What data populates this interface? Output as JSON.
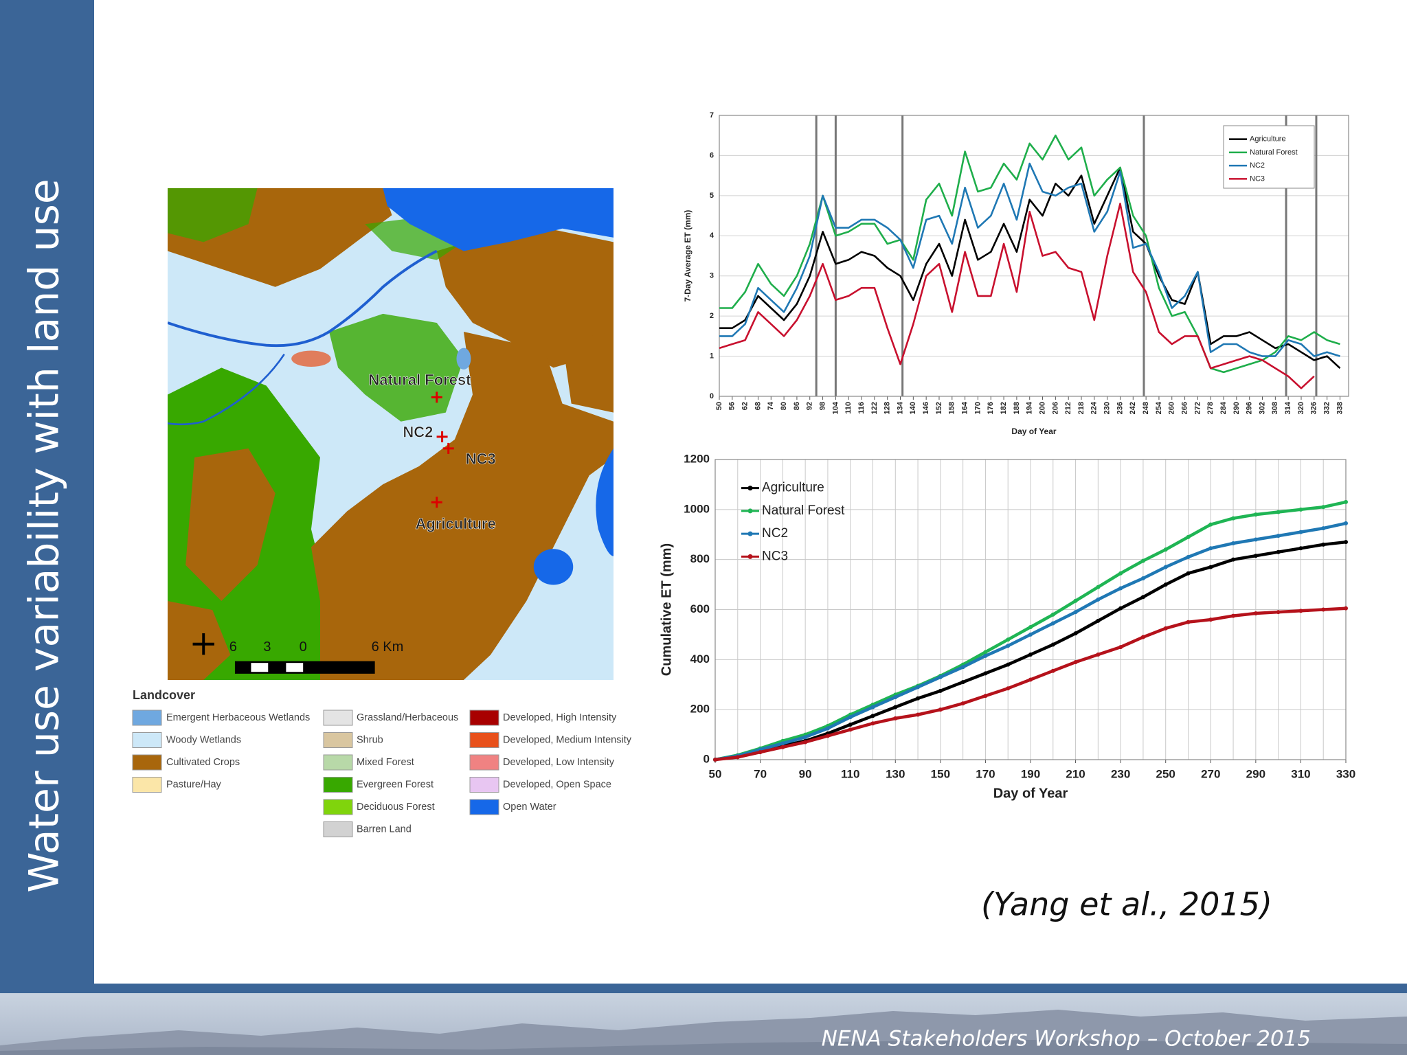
{
  "slide": {
    "title": "Water use variability with land use",
    "citation": "(Yang et al., 2015)",
    "footer": "NENA Stakeholders Workshop – October 2015"
  },
  "map": {
    "sites": [
      "Natural Forest",
      "NC2",
      "NC3",
      "Agriculture"
    ],
    "scale_labels": [
      "6",
      "3",
      "0",
      "6 Km"
    ],
    "legend_title": "Landcover",
    "legend": [
      [
        {
          "label": "Emergent Herbaceous Wetlands",
          "color": "#6fa8e0"
        },
        {
          "label": "Woody Wetlands",
          "color": "#cde8f8"
        },
        {
          "label": "Cultivated Crops",
          "color": "#a8660c"
        },
        {
          "label": "Pasture/Hay",
          "color": "#fbe6a8"
        }
      ],
      [
        {
          "label": "Grassland/Herbaceous",
          "color": "#e4e4e4"
        },
        {
          "label": "Shrub",
          "color": "#d9c6a0"
        },
        {
          "label": "Mixed Forest",
          "color": "#b8d9a8"
        },
        {
          "label": "Evergreen Forest",
          "color": "#38a800"
        },
        {
          "label": "Deciduous Forest",
          "color": "#80d40c"
        },
        {
          "label": "Barren Land",
          "color": "#d2d2d2"
        }
      ],
      [
        {
          "label": "Developed, High Intensity",
          "color": "#a80000"
        },
        {
          "label": "Developed, Medium Intensity",
          "color": "#e8501a"
        },
        {
          "label": "Developed, Low Intensity",
          "color": "#f08282"
        },
        {
          "label": "Developed, Open Space",
          "color": "#e8c6f2"
        },
        {
          "label": "Open Water",
          "color": "#1668e8"
        }
      ]
    ]
  },
  "chart_data": [
    {
      "type": "line",
      "ylabel": "7-Day Average ET (mm)",
      "xlabel": "Day of Year",
      "x": [
        50,
        56,
        62,
        68,
        74,
        80,
        86,
        92,
        98,
        104,
        110,
        116,
        122,
        128,
        134,
        140,
        146,
        152,
        158,
        164,
        170,
        176,
        182,
        188,
        194,
        200,
        206,
        212,
        218,
        224,
        230,
        236,
        242,
        248,
        254,
        260,
        266,
        272,
        278,
        284,
        290,
        296,
        302,
        308,
        314,
        320,
        326,
        332,
        338
      ],
      "xlim": [
        50,
        342
      ],
      "xticks": [
        50,
        56,
        62,
        68,
        74,
        80,
        86,
        92,
        98,
        104,
        110,
        116,
        122,
        128,
        134,
        140,
        146,
        152,
        158,
        164,
        170,
        176,
        182,
        188,
        194,
        200,
        206,
        212,
        218,
        224,
        230,
        236,
        242,
        248,
        254,
        260,
        266,
        272,
        278,
        284,
        290,
        296,
        302,
        308,
        314,
        320,
        326,
        332,
        338
      ],
      "ylim": [
        0,
        7
      ],
      "yticks": [
        0,
        1,
        2,
        3,
        4,
        5,
        6,
        7
      ],
      "grid": true,
      "vlines": [
        95,
        104,
        135,
        247,
        313,
        327
      ],
      "legend": "upper right",
      "markers": false,
      "series": [
        {
          "name": "Agriculture",
          "color": "#000000",
          "values": [
            1.7,
            1.7,
            1.9,
            2.5,
            2.2,
            1.9,
            2.3,
            3.0,
            4.1,
            3.3,
            3.4,
            3.6,
            3.5,
            3.2,
            3.0,
            2.4,
            3.3,
            3.8,
            3.0,
            4.4,
            3.4,
            3.6,
            4.3,
            3.6,
            4.9,
            4.5,
            5.3,
            5.0,
            5.5,
            4.3,
            5.0,
            5.7,
            4.1,
            3.8,
            3.0,
            2.4,
            2.3,
            3.1,
            1.3,
            1.5,
            1.5,
            1.6,
            1.4,
            1.2,
            1.3,
            1.1,
            0.9,
            1.0,
            0.7
          ]
        },
        {
          "name": "Natural Forest",
          "color": "#1fae4b",
          "values": [
            2.2,
            2.2,
            2.6,
            3.3,
            2.8,
            2.5,
            3.0,
            3.8,
            5.0,
            4.0,
            4.1,
            4.3,
            4.3,
            3.8,
            3.9,
            3.4,
            4.9,
            5.3,
            4.5,
            6.1,
            5.1,
            5.2,
            5.8,
            5.4,
            6.3,
            5.9,
            6.5,
            5.9,
            6.2,
            5.0,
            5.4,
            5.7,
            4.5,
            4.0,
            2.7,
            2.0,
            2.1,
            1.5,
            0.7,
            0.6,
            0.7,
            0.8,
            0.9,
            1.1,
            1.5,
            1.4,
            1.6,
            1.4,
            1.3
          ]
        },
        {
          "name": "NC2",
          "color": "#1f78b4",
          "values": [
            1.5,
            1.5,
            1.8,
            2.7,
            2.4,
            2.1,
            2.7,
            3.5,
            5.0,
            4.2,
            4.2,
            4.4,
            4.4,
            4.2,
            3.9,
            3.2,
            4.4,
            4.5,
            3.8,
            5.2,
            4.2,
            4.5,
            5.3,
            4.4,
            5.8,
            5.1,
            5.0,
            5.2,
            5.3,
            4.1,
            4.6,
            5.6,
            3.7,
            3.8,
            3.1,
            2.2,
            2.5,
            3.1,
            1.1,
            1.3,
            1.3,
            1.1,
            1.0,
            1.0,
            1.4,
            1.3,
            1.0,
            1.1,
            1.0
          ]
        },
        {
          "name": "NC3",
          "color": "#c8102e",
          "values": [
            1.2,
            1.3,
            1.4,
            2.1,
            1.8,
            1.5,
            1.9,
            2.5,
            3.3,
            2.4,
            2.5,
            2.7,
            2.7,
            1.7,
            0.8,
            1.8,
            3.0,
            3.3,
            2.1,
            3.6,
            2.5,
            2.5,
            3.8,
            2.6,
            4.6,
            3.5,
            3.6,
            3.2,
            3.1,
            1.9,
            3.5,
            4.8,
            3.1,
            2.6,
            1.6,
            1.3,
            1.5,
            1.5,
            0.7,
            0.8,
            0.9,
            1.0,
            0.9,
            0.7,
            0.5,
            0.2,
            0.5,
            null,
            null
          ]
        }
      ]
    },
    {
      "type": "line",
      "ylabel": "Cumulative ET (mm)",
      "xlabel": "Day of Year",
      "x": [
        50,
        60,
        70,
        80,
        90,
        100,
        110,
        120,
        130,
        140,
        150,
        160,
        170,
        180,
        190,
        200,
        210,
        220,
        230,
        240,
        250,
        260,
        270,
        280,
        290,
        300,
        310,
        320,
        330
      ],
      "xlim": [
        50,
        330
      ],
      "xticks": [
        50,
        70,
        90,
        110,
        130,
        150,
        170,
        190,
        210,
        230,
        250,
        270,
        290,
        310,
        330
      ],
      "ylim": [
        0,
        1200
      ],
      "yticks": [
        0,
        200,
        400,
        600,
        800,
        1000,
        1200
      ],
      "grid": true,
      "legend": "upper left",
      "markers": true,
      "series": [
        {
          "name": "Agriculture",
          "color": "#000000",
          "values": [
            0,
            15,
            35,
            55,
            75,
            105,
            140,
            175,
            210,
            245,
            275,
            310,
            345,
            380,
            420,
            460,
            505,
            555,
            605,
            650,
            700,
            745,
            770,
            800,
            815,
            830,
            845,
            860,
            870
          ]
        },
        {
          "name": "Natural Forest",
          "color": "#1fb554",
          "values": [
            0,
            18,
            45,
            75,
            100,
            135,
            180,
            220,
            260,
            295,
            335,
            380,
            430,
            480,
            530,
            580,
            635,
            690,
            745,
            795,
            840,
            890,
            940,
            965,
            980,
            990,
            1000,
            1010,
            1030
          ]
        },
        {
          "name": "NC2",
          "color": "#1f78b4",
          "values": [
            0,
            15,
            40,
            65,
            90,
            125,
            170,
            210,
            250,
            290,
            330,
            370,
            415,
            455,
            500,
            545,
            590,
            640,
            685,
            725,
            770,
            810,
            845,
            865,
            880,
            895,
            910,
            925,
            945
          ]
        },
        {
          "name": "NC3",
          "color": "#b5121b",
          "values": [
            0,
            10,
            30,
            50,
            70,
            95,
            120,
            145,
            165,
            180,
            200,
            225,
            255,
            285,
            320,
            355,
            390,
            420,
            450,
            490,
            525,
            550,
            560,
            575,
            585,
            590,
            595,
            600,
            605
          ]
        }
      ]
    }
  ]
}
